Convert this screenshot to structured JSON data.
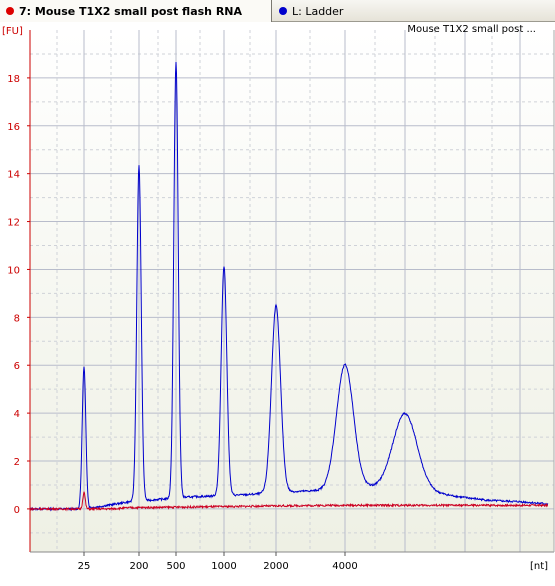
{
  "tabs": [
    {
      "label": "7: Mouse T1X2 small post flash RNA",
      "color": "#dd0000"
    },
    {
      "label": "L: Ladder",
      "color": "#0000cc"
    }
  ],
  "chart_data": {
    "type": "line",
    "title": "Mouse T1X2 small post ...",
    "ylabel": "[FU]",
    "xlabel": "[nt]",
    "ylim": [
      -1.8,
      20
    ],
    "yticks": [
      0,
      2,
      4,
      6,
      8,
      10,
      12,
      14,
      16,
      18
    ],
    "xticks": [
      "25",
      "200",
      "500",
      "1000",
      "2000",
      "4000"
    ],
    "grid": true,
    "series": [
      {
        "name": "L: Ladder",
        "color": "#0000cc",
        "baseline": [
          [
            0,
            0.0
          ],
          [
            50,
            0.0
          ],
          [
            70,
            0.1
          ],
          [
            100,
            0.3
          ],
          [
            130,
            0.4
          ],
          [
            160,
            0.5
          ],
          [
            190,
            0.55
          ],
          [
            220,
            0.6
          ],
          [
            250,
            0.7
          ],
          [
            280,
            0.75
          ],
          [
            310,
            0.8
          ],
          [
            340,
            0.9
          ],
          [
            370,
            0.8
          ],
          [
            400,
            0.7
          ],
          [
            430,
            0.5
          ],
          [
            460,
            0.35
          ],
          [
            490,
            0.3
          ],
          [
            520,
            0.2
          ],
          [
            540,
            0.15
          ]
        ],
        "peaks": [
          {
            "label": "25",
            "height": 5.9
          },
          {
            "label": "200",
            "height": 14.0
          },
          {
            "label": "500",
            "height": 18.2
          },
          {
            "label": "1000",
            "height": 9.6
          },
          {
            "label": "2000",
            "height": 7.8
          },
          {
            "label": "4000",
            "height": 5.2
          },
          {
            "label": "",
            "height": 3.2
          }
        ]
      },
      {
        "name": "7: Mouse T1X2 small post flash RNA",
        "color": "#cc0022",
        "baseline": [
          [
            0,
            0.0
          ],
          [
            80,
            0.0
          ],
          [
            100,
            0.05
          ],
          [
            200,
            0.1
          ],
          [
            300,
            0.15
          ],
          [
            400,
            0.15
          ],
          [
            540,
            0.15
          ]
        ],
        "peaks": [
          {
            "label": "25",
            "height": 0.7
          }
        ]
      }
    ]
  }
}
